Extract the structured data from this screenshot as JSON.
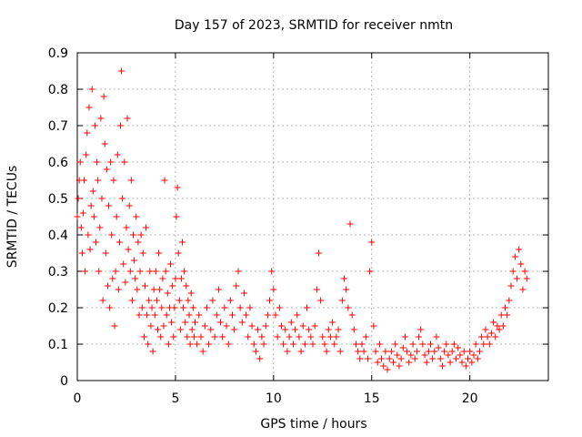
{
  "chart_data": {
    "type": "scatter",
    "title": "Day 157 of 2023, SRMTID for receiver nmtn",
    "xlabel": "GPS time / hours",
    "ylabel": "SRMTID / TECUs",
    "xlim": [
      0,
      24
    ],
    "ylim": [
      0,
      0.9
    ],
    "x_ticks": [
      0,
      5,
      10,
      15,
      20
    ],
    "y_ticks": [
      0,
      0.1,
      0.2,
      0.3,
      0.4,
      0.5,
      0.6,
      0.7,
      0.8,
      0.9
    ],
    "x_tick_labels": [
      "0",
      "5",
      "10",
      "15",
      "20"
    ],
    "y_tick_labels": [
      "0",
      "0.1",
      "0.2",
      "0.3",
      "0.4",
      "0.5",
      "0.6",
      "0.7",
      "0.8",
      "0.9"
    ],
    "grid": true,
    "marker": "+",
    "color": "#ff0000",
    "series": [
      {
        "name": "SRMTID",
        "points": [
          [
            0.0,
            0.45
          ],
          [
            0.05,
            0.5
          ],
          [
            0.1,
            0.55
          ],
          [
            0.15,
            0.6
          ],
          [
            0.2,
            0.42
          ],
          [
            0.25,
            0.35
          ],
          [
            0.3,
            0.46
          ],
          [
            0.35,
            0.55
          ],
          [
            0.4,
            0.3
          ],
          [
            0.45,
            0.62
          ],
          [
            0.5,
            0.68
          ],
          [
            0.55,
            0.4
          ],
          [
            0.6,
            0.75
          ],
          [
            0.65,
            0.36
          ],
          [
            0.7,
            0.48
          ],
          [
            0.75,
            0.8
          ],
          [
            0.8,
            0.52
          ],
          [
            0.85,
            0.45
          ],
          [
            0.9,
            0.7
          ],
          [
            0.95,
            0.38
          ],
          [
            1.0,
            0.6
          ],
          [
            1.05,
            0.55
          ],
          [
            1.1,
            0.3
          ],
          [
            1.15,
            0.42
          ],
          [
            1.2,
            0.72
          ],
          [
            1.25,
            0.5
          ],
          [
            1.3,
            0.22
          ],
          [
            1.35,
            0.78
          ],
          [
            1.4,
            0.65
          ],
          [
            1.45,
            0.35
          ],
          [
            1.5,
            0.58
          ],
          [
            1.55,
            0.26
          ],
          [
            1.6,
            0.48
          ],
          [
            1.65,
            0.2
          ],
          [
            1.7,
            0.6
          ],
          [
            1.75,
            0.4
          ],
          [
            1.8,
            0.28
          ],
          [
            1.85,
            0.55
          ],
          [
            1.9,
            0.15
          ],
          [
            1.95,
            0.3
          ],
          [
            2.0,
            0.45
          ],
          [
            2.05,
            0.62
          ],
          [
            2.1,
            0.25
          ],
          [
            2.15,
            0.38
          ],
          [
            2.2,
            0.7
          ],
          [
            2.25,
            0.85
          ],
          [
            2.3,
            0.5
          ],
          [
            2.35,
            0.32
          ],
          [
            2.4,
            0.6
          ],
          [
            2.45,
            0.27
          ],
          [
            2.5,
            0.42
          ],
          [
            2.55,
            0.72
          ],
          [
            2.6,
            0.36
          ],
          [
            2.65,
            0.48
          ],
          [
            2.7,
            0.3
          ],
          [
            2.75,
            0.55
          ],
          [
            2.8,
            0.22
          ],
          [
            2.85,
            0.4
          ],
          [
            2.9,
            0.33
          ],
          [
            2.95,
            0.28
          ],
          [
            3.0,
            0.45
          ],
          [
            3.05,
            0.25
          ],
          [
            3.1,
            0.38
          ],
          [
            3.15,
            0.18
          ],
          [
            3.2,
            0.3
          ],
          [
            3.25,
            0.4
          ],
          [
            3.3,
            0.2
          ],
          [
            3.35,
            0.35
          ],
          [
            3.4,
            0.12
          ],
          [
            3.45,
            0.26
          ],
          [
            3.5,
            0.42
          ],
          [
            3.55,
            0.18
          ],
          [
            3.6,
            0.1
          ],
          [
            3.65,
            0.22
          ],
          [
            3.7,
            0.3
          ],
          [
            3.75,
            0.15
          ],
          [
            3.8,
            0.2
          ],
          [
            3.85,
            0.08
          ],
          [
            3.9,
            0.25
          ],
          [
            3.95,
            0.18
          ],
          [
            4.0,
            0.3
          ],
          [
            4.05,
            0.22
          ],
          [
            4.1,
            0.14
          ],
          [
            4.15,
            0.35
          ],
          [
            4.2,
            0.25
          ],
          [
            4.25,
            0.12
          ],
          [
            4.3,
            0.2
          ],
          [
            4.35,
            0.28
          ],
          [
            4.4,
            0.15
          ],
          [
            4.45,
            0.55
          ],
          [
            4.5,
            0.3
          ],
          [
            4.55,
            0.18
          ],
          [
            4.6,
            0.24
          ],
          [
            4.65,
            0.1
          ],
          [
            4.7,
            0.2
          ],
          [
            4.75,
            0.32
          ],
          [
            4.8,
            0.16
          ],
          [
            4.85,
            0.26
          ],
          [
            4.9,
            0.12
          ],
          [
            4.95,
            0.2
          ],
          [
            5.0,
            0.28
          ],
          [
            5.05,
            0.45
          ],
          [
            5.1,
            0.53
          ],
          [
            5.15,
            0.35
          ],
          [
            5.2,
            0.22
          ],
          [
            5.25,
            0.14
          ],
          [
            5.3,
            0.28
          ],
          [
            5.35,
            0.38
          ],
          [
            5.4,
            0.2
          ],
          [
            5.45,
            0.3
          ],
          [
            5.5,
            0.16
          ],
          [
            5.55,
            0.26
          ],
          [
            5.6,
            0.12
          ],
          [
            5.65,
            0.22
          ],
          [
            5.7,
            0.18
          ],
          [
            5.75,
            0.1
          ],
          [
            5.8,
            0.24
          ],
          [
            5.85,
            0.14
          ],
          [
            5.9,
            0.2
          ],
          [
            5.95,
            0.12
          ],
          [
            6.0,
            0.16
          ],
          [
            6.1,
            0.1
          ],
          [
            6.2,
            0.18
          ],
          [
            6.3,
            0.12
          ],
          [
            6.4,
            0.08
          ],
          [
            6.5,
            0.15
          ],
          [
            6.6,
            0.2
          ],
          [
            6.7,
            0.1
          ],
          [
            6.8,
            0.14
          ],
          [
            6.9,
            0.22
          ],
          [
            7.0,
            0.12
          ],
          [
            7.1,
            0.18
          ],
          [
            7.2,
            0.25
          ],
          [
            7.3,
            0.16
          ],
          [
            7.4,
            0.12
          ],
          [
            7.5,
            0.2
          ],
          [
            7.6,
            0.15
          ],
          [
            7.7,
            0.1
          ],
          [
            7.8,
            0.22
          ],
          [
            7.9,
            0.18
          ],
          [
            8.0,
            0.14
          ],
          [
            8.1,
            0.26
          ],
          [
            8.2,
            0.3
          ],
          [
            8.3,
            0.2
          ],
          [
            8.4,
            0.16
          ],
          [
            8.5,
            0.24
          ],
          [
            8.6,
            0.18
          ],
          [
            8.7,
            0.12
          ],
          [
            8.8,
            0.2
          ],
          [
            8.9,
            0.15
          ],
          [
            9.0,
            0.1
          ],
          [
            9.1,
            0.08
          ],
          [
            9.2,
            0.14
          ],
          [
            9.3,
            0.06
          ],
          [
            9.4,
            0.12
          ],
          [
            9.5,
            0.1
          ],
          [
            9.6,
            0.15
          ],
          [
            9.7,
            0.18
          ],
          [
            9.8,
            0.22
          ],
          [
            9.9,
            0.3
          ],
          [
            10.0,
            0.25
          ],
          [
            10.1,
            0.18
          ],
          [
            10.2,
            0.12
          ],
          [
            10.3,
            0.2
          ],
          [
            10.4,
            0.15
          ],
          [
            10.5,
            0.1
          ],
          [
            10.6,
            0.14
          ],
          [
            10.7,
            0.08
          ],
          [
            10.8,
            0.12
          ],
          [
            10.9,
            0.16
          ],
          [
            11.0,
            0.1
          ],
          [
            11.1,
            0.14
          ],
          [
            11.2,
            0.18
          ],
          [
            11.3,
            0.12
          ],
          [
            11.4,
            0.08
          ],
          [
            11.5,
            0.15
          ],
          [
            11.6,
            0.1
          ],
          [
            11.7,
            0.2
          ],
          [
            11.8,
            0.14
          ],
          [
            11.9,
            0.12
          ],
          [
            12.0,
            0.1
          ],
          [
            12.1,
            0.15
          ],
          [
            12.2,
            0.25
          ],
          [
            12.3,
            0.35
          ],
          [
            12.4,
            0.22
          ],
          [
            12.5,
            0.12
          ],
          [
            12.6,
            0.1
          ],
          [
            12.7,
            0.08
          ],
          [
            12.8,
            0.14
          ],
          [
            12.9,
            0.12
          ],
          [
            13.0,
            0.16
          ],
          [
            13.1,
            0.1
          ],
          [
            13.2,
            0.12
          ],
          [
            13.3,
            0.14
          ],
          [
            13.4,
            0.08
          ],
          [
            13.5,
            0.22
          ],
          [
            13.6,
            0.28
          ],
          [
            13.7,
            0.25
          ],
          [
            13.8,
            0.2
          ],
          [
            13.9,
            0.43
          ],
          [
            14.0,
            0.18
          ],
          [
            14.1,
            0.14
          ],
          [
            14.2,
            0.1
          ],
          [
            14.3,
            0.08
          ],
          [
            14.4,
            0.06
          ],
          [
            14.5,
            0.1
          ],
          [
            14.6,
            0.08
          ],
          [
            14.7,
            0.12
          ],
          [
            14.8,
            0.06
          ],
          [
            14.9,
            0.3
          ],
          [
            15.0,
            0.38
          ],
          [
            15.1,
            0.15
          ],
          [
            15.2,
            0.08
          ],
          [
            15.3,
            0.05
          ],
          [
            15.4,
            0.1
          ],
          [
            15.5,
            0.06
          ],
          [
            15.6,
            0.04
          ],
          [
            15.7,
            0.08
          ],
          [
            15.8,
            0.03
          ],
          [
            15.9,
            0.06
          ],
          [
            16.0,
            0.08
          ],
          [
            16.1,
            0.05
          ],
          [
            16.2,
            0.1
          ],
          [
            16.3,
            0.07
          ],
          [
            16.4,
            0.04
          ],
          [
            16.5,
            0.06
          ],
          [
            16.6,
            0.09
          ],
          [
            16.7,
            0.12
          ],
          [
            16.8,
            0.08
          ],
          [
            16.9,
            0.05
          ],
          [
            17.0,
            0.07
          ],
          [
            17.1,
            0.1
          ],
          [
            17.2,
            0.06
          ],
          [
            17.3,
            0.08
          ],
          [
            17.4,
            0.12
          ],
          [
            17.5,
            0.14
          ],
          [
            17.6,
            0.1
          ],
          [
            17.7,
            0.07
          ],
          [
            17.8,
            0.05
          ],
          [
            17.9,
            0.08
          ],
          [
            18.0,
            0.1
          ],
          [
            18.1,
            0.06
          ],
          [
            18.2,
            0.08
          ],
          [
            18.3,
            0.12
          ],
          [
            18.4,
            0.09
          ],
          [
            18.5,
            0.06
          ],
          [
            18.6,
            0.04
          ],
          [
            18.7,
            0.08
          ],
          [
            18.8,
            0.1
          ],
          [
            18.9,
            0.07
          ],
          [
            19.0,
            0.05
          ],
          [
            19.1,
            0.08
          ],
          [
            19.2,
            0.1
          ],
          [
            19.3,
            0.06
          ],
          [
            19.4,
            0.09
          ],
          [
            19.5,
            0.07
          ],
          [
            19.6,
            0.05
          ],
          [
            19.7,
            0.08
          ],
          [
            19.8,
            0.04
          ],
          [
            19.9,
            0.06
          ],
          [
            20.0,
            0.08
          ],
          [
            20.1,
            0.05
          ],
          [
            20.2,
            0.07
          ],
          [
            20.3,
            0.1
          ],
          [
            20.4,
            0.06
          ],
          [
            20.5,
            0.08
          ],
          [
            20.6,
            0.12
          ],
          [
            20.7,
            0.1
          ],
          [
            20.8,
            0.14
          ],
          [
            20.9,
            0.12
          ],
          [
            21.0,
            0.1
          ],
          [
            21.1,
            0.13
          ],
          [
            21.2,
            0.16
          ],
          [
            21.3,
            0.12
          ],
          [
            21.4,
            0.15
          ],
          [
            21.5,
            0.14
          ],
          [
            21.6,
            0.18
          ],
          [
            21.7,
            0.15
          ],
          [
            21.8,
            0.2
          ],
          [
            21.9,
            0.18
          ],
          [
            22.0,
            0.22
          ],
          [
            22.1,
            0.26
          ],
          [
            22.2,
            0.3
          ],
          [
            22.3,
            0.34
          ],
          [
            22.4,
            0.28
          ],
          [
            22.5,
            0.36
          ],
          [
            22.6,
            0.32
          ],
          [
            22.7,
            0.25
          ],
          [
            22.8,
            0.3
          ],
          [
            22.9,
            0.28
          ]
        ]
      }
    ]
  }
}
